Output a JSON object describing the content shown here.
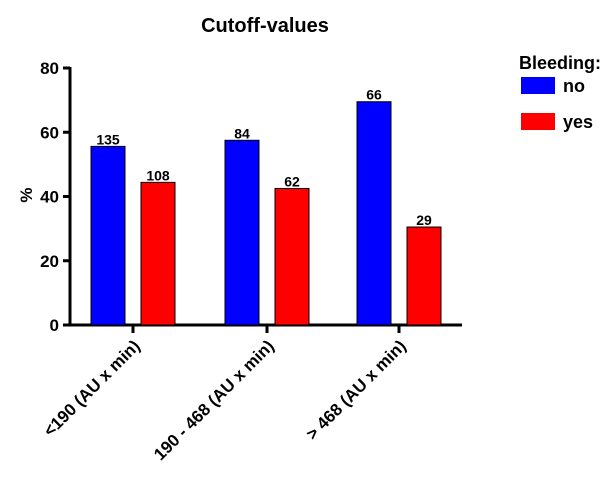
{
  "chart_data": {
    "type": "bar",
    "title": "Cutoff-values",
    "xlabel": "",
    "ylabel": "%",
    "ylim": [
      0,
      80
    ],
    "yticks": [
      0,
      20,
      40,
      60,
      80
    ],
    "grid": false,
    "legend": {
      "title": "Bleeding:",
      "placement": "top-right"
    },
    "categories": [
      "<190 (AU x min)",
      "190 - 468 (AU x min)",
      "> 468 (AU x min)"
    ],
    "series": [
      {
        "name": "no",
        "color": "#0000ff",
        "values": [
          55.6,
          57.5,
          69.5
        ],
        "data_labels": [
          "135",
          "84",
          "66"
        ]
      },
      {
        "name": "yes",
        "color": "#ff0000",
        "values": [
          44.4,
          42.5,
          30.5
        ],
        "data_labels": [
          "108",
          "62",
          "29"
        ]
      }
    ]
  }
}
